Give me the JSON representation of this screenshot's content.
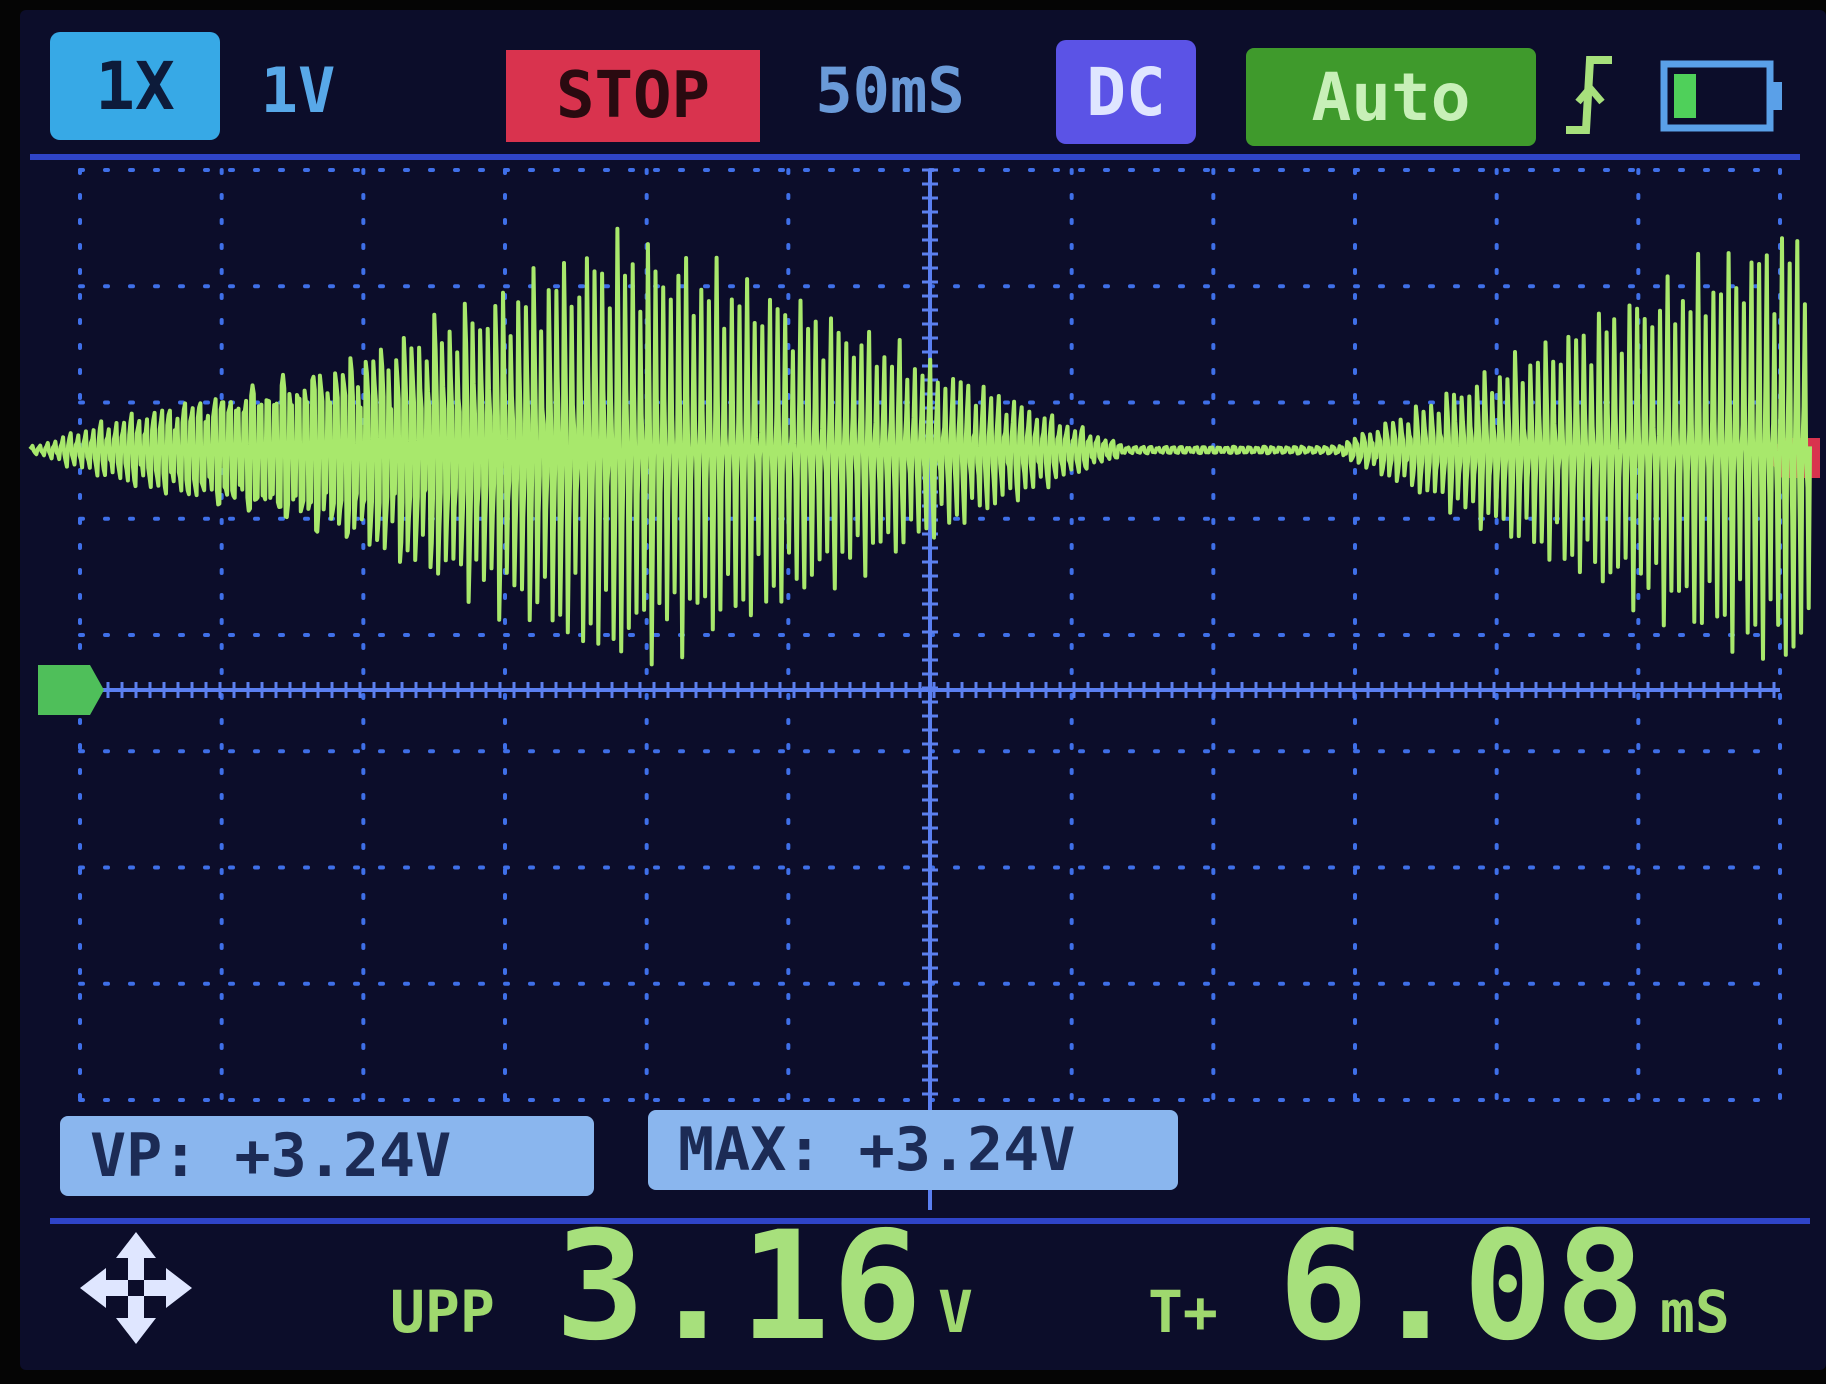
{
  "status_bar": {
    "probe": "1X",
    "volts_div": "1V",
    "run_state": "STOP",
    "time_div": "50mS",
    "coupling": "DC",
    "trigger_mode": "Auto",
    "trigger_edge_icon": "rising-edge-icon",
    "battery_icon": "battery-icon"
  },
  "measurements": {
    "vp": "VP: +3.24V",
    "max": "MAX: +3.24V"
  },
  "readout": {
    "move_icon": "move-arrows-icon",
    "vpp_label": "UPP",
    "vpp_value": "3.16",
    "vpp_unit": "V",
    "t_label": "T+",
    "t_value": "6.08",
    "t_unit": "mS"
  },
  "colors": {
    "background": "#0c0d2a",
    "grid": "#3f6fe8",
    "trace": "#a8e86c",
    "run_state": "#d9334e",
    "coupling": "#5b53e6",
    "trigger": "#3f9a2c",
    "probe": "#37a9e6"
  },
  "waveform": {
    "baseline_fraction": 0.5,
    "bursts": [
      {
        "start": 0.0,
        "peak": 0.33,
        "end": 0.62,
        "amplitude": 0.95
      },
      {
        "start": 0.73,
        "peak": 1.0,
        "end": 1.0,
        "amplitude": 1.0
      }
    ]
  }
}
